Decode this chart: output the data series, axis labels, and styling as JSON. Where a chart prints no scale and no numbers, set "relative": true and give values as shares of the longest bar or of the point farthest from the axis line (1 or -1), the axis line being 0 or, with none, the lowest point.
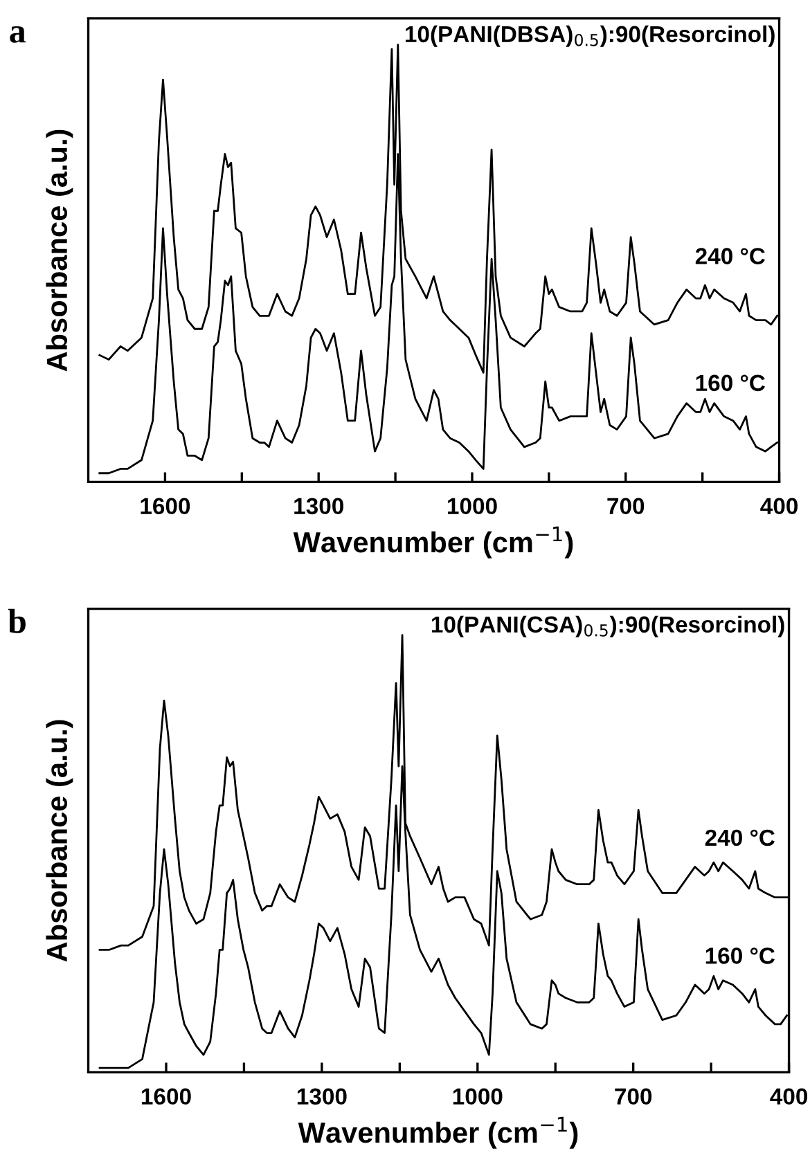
{
  "chart_data": [
    {
      "type": "line",
      "title": "10(PANI(DBSA)$_{0.5}$):90(Resorcinol)",
      "xlabel": "Wavenumber (cm$^{−1}$)",
      "ylabel": "Absorbance (a.u.)",
      "annotations": [
        "a"
      ],
      "relative": true,
      "line_style": "solid",
      "marker": "none",
      "grid": false,
      "legend": false,
      "xlim": [
        1750,
        400
      ],
      "xticks": [
        1600,
        {
          "value": 1450,
          "label": null
        },
        1300,
        {
          "value": 1150,
          "label": null
        },
        1000,
        {
          "value": 850,
          "label": null
        },
        700,
        {
          "value": 550,
          "label": null
        },
        400
      ],
      "x": [
        1728,
        1710,
        1687,
        1673,
        1646,
        1624,
        1612,
        1604,
        1596,
        1583,
        1574,
        1565,
        1556,
        1542,
        1528,
        1515,
        1504,
        1497,
        1491,
        1483,
        1477,
        1471,
        1462,
        1451,
        1442,
        1429,
        1415,
        1406,
        1397,
        1381,
        1365,
        1352,
        1338,
        1324,
        1315,
        1306,
        1297,
        1284,
        1270,
        1256,
        1243,
        1229,
        1217,
        1207,
        1190,
        1179,
        1166,
        1157,
        1152,
        1145,
        1139,
        1130,
        1111,
        1089,
        1075,
        1066,
        1057,
        1043,
        1025,
        1007,
        993,
        978,
        971,
        962,
        954,
        944,
        925,
        898,
        876,
        867,
        857,
        850,
        844,
        830,
        808,
        785,
        776,
        767,
        758,
        749,
        742,
        731,
        717,
        699,
        690,
        683,
        672,
        644,
        617,
        599,
        581,
        563,
        554,
        545,
        536,
        527,
        508,
        490,
        477,
        465,
        459,
        445,
        427,
        416,
        404
      ],
      "series": [
        {
          "name": "240 °C",
          "color": "#000000",
          "values": [
            0.29,
            0.28,
            0.31,
            0.3,
            0.33,
            0.42,
            0.78,
            0.92,
            0.79,
            0.56,
            0.44,
            0.42,
            0.37,
            0.35,
            0.35,
            0.4,
            0.62,
            0.62,
            0.68,
            0.75,
            0.72,
            0.73,
            0.58,
            0.57,
            0.47,
            0.4,
            0.38,
            0.38,
            0.38,
            0.43,
            0.39,
            0.38,
            0.42,
            0.51,
            0.61,
            0.63,
            0.61,
            0.56,
            0.6,
            0.53,
            0.43,
            0.43,
            0.57,
            0.49,
            0.38,
            0.4,
            0.68,
            0.99,
            0.68,
            1.0,
            0.62,
            0.51,
            0.47,
            0.42,
            0.47,
            0.43,
            0.39,
            0.37,
            0.35,
            0.33,
            0.29,
            0.25,
            0.51,
            0.76,
            0.47,
            0.38,
            0.33,
            0.31,
            0.34,
            0.35,
            0.47,
            0.43,
            0.44,
            0.4,
            0.39,
            0.39,
            0.41,
            0.58,
            0.5,
            0.41,
            0.44,
            0.39,
            0.38,
            0.41,
            0.56,
            0.5,
            0.39,
            0.36,
            0.37,
            0.41,
            0.44,
            0.42,
            0.42,
            0.45,
            0.42,
            0.44,
            0.42,
            0.41,
            0.39,
            0.43,
            0.38,
            0.37,
            0.37,
            0.36,
            0.38
          ]
        },
        {
          "name": "160 °C",
          "color": "#000000",
          "values": [
            0.02,
            0.02,
            0.03,
            0.03,
            0.05,
            0.14,
            0.37,
            0.58,
            0.43,
            0.23,
            0.12,
            0.11,
            0.06,
            0.06,
            0.05,
            0.1,
            0.31,
            0.32,
            0.37,
            0.46,
            0.45,
            0.47,
            0.3,
            0.27,
            0.19,
            0.1,
            0.09,
            0.09,
            0.08,
            0.14,
            0.1,
            0.09,
            0.13,
            0.22,
            0.33,
            0.35,
            0.34,
            0.3,
            0.34,
            0.25,
            0.14,
            0.14,
            0.3,
            0.2,
            0.07,
            0.1,
            0.26,
            0.45,
            0.47,
            0.75,
            0.51,
            0.28,
            0.19,
            0.14,
            0.21,
            0.19,
            0.12,
            0.1,
            0.09,
            0.07,
            0.05,
            0.03,
            0.26,
            0.51,
            0.37,
            0.17,
            0.12,
            0.08,
            0.09,
            0.1,
            0.23,
            0.17,
            0.17,
            0.14,
            0.15,
            0.15,
            0.15,
            0.34,
            0.25,
            0.16,
            0.19,
            0.13,
            0.12,
            0.15,
            0.33,
            0.27,
            0.14,
            0.1,
            0.11,
            0.15,
            0.18,
            0.16,
            0.16,
            0.19,
            0.16,
            0.18,
            0.15,
            0.14,
            0.12,
            0.15,
            0.11,
            0.08,
            0.07,
            0.08,
            0.09
          ]
        }
      ]
    },
    {
      "type": "line",
      "title": "10(PANI(CSA)$_{0.5}$):90(Resorcinol)",
      "xlabel": "Wavenumber (cm$^{−1}$)",
      "ylabel": "Absorbance (a.u.)",
      "annotations": [
        "b"
      ],
      "relative": true,
      "line_style": "solid",
      "marker": "none",
      "grid": false,
      "legend": false,
      "xlim": [
        1750,
        400
      ],
      "xticks": [
        1600,
        {
          "value": 1450,
          "label": null
        },
        1300,
        {
          "value": 1150,
          "label": null
        },
        1000,
        {
          "value": 850,
          "label": null
        },
        700,
        {
          "value": 550,
          "label": null
        },
        400
      ],
      "x": [
        1728,
        1710,
        1687,
        1673,
        1646,
        1624,
        1612,
        1604,
        1596,
        1583,
        1574,
        1565,
        1556,
        1542,
        1528,
        1515,
        1504,
        1497,
        1491,
        1483,
        1477,
        1471,
        1462,
        1451,
        1442,
        1429,
        1415,
        1406,
        1397,
        1381,
        1365,
        1352,
        1338,
        1324,
        1315,
        1306,
        1297,
        1284,
        1270,
        1256,
        1243,
        1229,
        1217,
        1207,
        1190,
        1179,
        1166,
        1157,
        1152,
        1145,
        1139,
        1130,
        1111,
        1089,
        1075,
        1066,
        1057,
        1043,
        1025,
        1007,
        993,
        978,
        971,
        962,
        954,
        944,
        925,
        898,
        876,
        867,
        857,
        850,
        844,
        830,
        808,
        785,
        776,
        767,
        758,
        749,
        742,
        731,
        717,
        699,
        690,
        683,
        672,
        644,
        617,
        599,
        581,
        563,
        554,
        545,
        536,
        527,
        508,
        490,
        477,
        465,
        459,
        445,
        427,
        416,
        404
      ],
      "series": [
        {
          "name": "240 °C",
          "color": "#000000",
          "values": [
            0.28,
            0.28,
            0.29,
            0.29,
            0.31,
            0.38,
            0.74,
            0.85,
            0.77,
            0.58,
            0.46,
            0.4,
            0.37,
            0.34,
            0.35,
            0.41,
            0.55,
            0.61,
            0.61,
            0.72,
            0.7,
            0.71,
            0.6,
            0.54,
            0.49,
            0.41,
            0.37,
            0.38,
            0.38,
            0.43,
            0.4,
            0.39,
            0.45,
            0.52,
            0.57,
            0.63,
            0.61,
            0.58,
            0.59,
            0.55,
            0.47,
            0.44,
            0.56,
            0.54,
            0.42,
            0.42,
            0.67,
            0.89,
            0.7,
            1.0,
            0.57,
            0.54,
            0.49,
            0.43,
            0.47,
            0.42,
            0.39,
            0.4,
            0.4,
            0.35,
            0.34,
            0.29,
            0.51,
            0.77,
            0.67,
            0.51,
            0.39,
            0.35,
            0.36,
            0.39,
            0.51,
            0.48,
            0.46,
            0.44,
            0.43,
            0.43,
            0.44,
            0.6,
            0.53,
            0.48,
            0.48,
            0.45,
            0.43,
            0.46,
            0.6,
            0.54,
            0.46,
            0.41,
            0.41,
            0.44,
            0.47,
            0.45,
            0.46,
            0.48,
            0.46,
            0.48,
            0.46,
            0.44,
            0.42,
            0.46,
            0.42,
            0.41,
            0.4,
            0.4,
            0.4
          ]
        },
        {
          "name": "160 °C",
          "color": "#000000",
          "values": [
            0.01,
            0.01,
            0.01,
            0.01,
            0.03,
            0.16,
            0.41,
            0.51,
            0.43,
            0.25,
            0.16,
            0.11,
            0.09,
            0.06,
            0.04,
            0.07,
            0.18,
            0.28,
            0.28,
            0.41,
            0.42,
            0.44,
            0.35,
            0.28,
            0.24,
            0.16,
            0.1,
            0.09,
            0.09,
            0.14,
            0.1,
            0.08,
            0.13,
            0.21,
            0.27,
            0.34,
            0.33,
            0.3,
            0.33,
            0.27,
            0.19,
            0.15,
            0.26,
            0.24,
            0.1,
            0.09,
            0.36,
            0.61,
            0.46,
            0.7,
            0.55,
            0.36,
            0.28,
            0.23,
            0.26,
            0.23,
            0.2,
            0.17,
            0.14,
            0.11,
            0.09,
            0.04,
            0.18,
            0.46,
            0.41,
            0.26,
            0.16,
            0.11,
            0.1,
            0.11,
            0.21,
            0.2,
            0.18,
            0.17,
            0.16,
            0.16,
            0.17,
            0.34,
            0.27,
            0.22,
            0.21,
            0.18,
            0.15,
            0.16,
            0.35,
            0.28,
            0.19,
            0.12,
            0.13,
            0.16,
            0.2,
            0.18,
            0.19,
            0.22,
            0.19,
            0.21,
            0.2,
            0.18,
            0.16,
            0.19,
            0.15,
            0.13,
            0.11,
            0.11,
            0.13
          ]
        }
      ]
    }
  ]
}
